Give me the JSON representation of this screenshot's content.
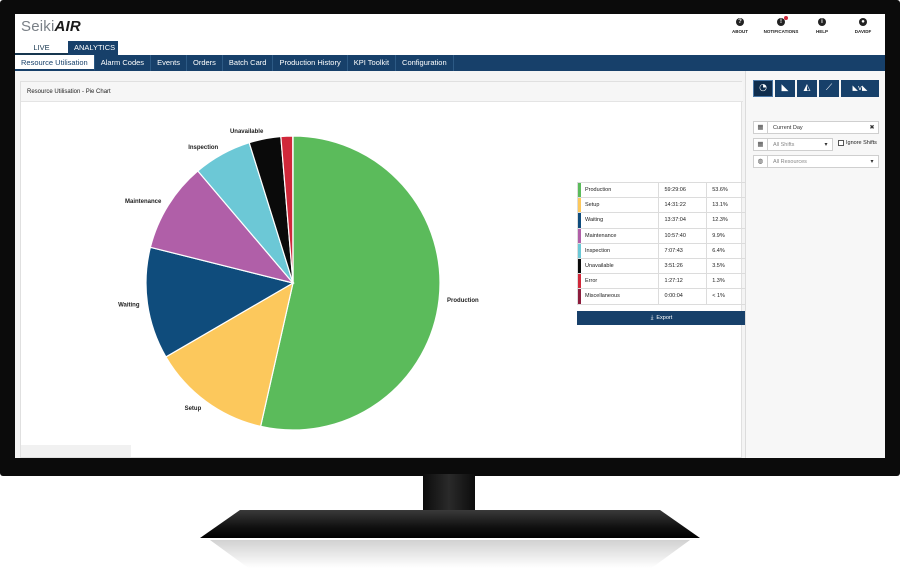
{
  "app": {
    "logo_prefix": "Seiki",
    "logo_suffix": "AIR"
  },
  "header_icons": [
    {
      "label": "ABOUT",
      "icon": "question-icon",
      "glyph": "?"
    },
    {
      "label": "NOTIFICATIONS",
      "icon": "bell-icon",
      "glyph": "!"
    },
    {
      "label": "HELP",
      "icon": "info-icon",
      "glyph": "i"
    },
    {
      "label": "DAVIDF",
      "icon": "user-icon",
      "glyph": "●"
    }
  ],
  "main_tabs": {
    "live_status": "LIVE STATUS",
    "analytics": "ANALYTICS"
  },
  "sub_tabs": [
    "Resource Utilisation",
    "Alarm Codes",
    "Events",
    "Orders",
    "Batch Card",
    "Production History",
    "KPI Toolkit",
    "Configuration"
  ],
  "panel": {
    "title": "Resource Utilisation - Pie Chart",
    "export_label": "Export"
  },
  "colors": {
    "accent": "#17406a",
    "Production": "#5bbb5b",
    "Setup": "#fcc85c",
    "Waiting": "#0f4c7c",
    "Maintenance": "#b05fa8",
    "Inspection": "#6cc8d6",
    "Unavailable": "#0a0a0a",
    "Error": "#d0283a",
    "Miscellaneous": "#8c1c3c"
  },
  "legend": [
    {
      "name": "Production",
      "time": "59:29:06",
      "percent": "53.6%"
    },
    {
      "name": "Setup",
      "time": "14:31:22",
      "percent": "13.1%"
    },
    {
      "name": "Waiting",
      "time": "13:37:04",
      "percent": "12.3%"
    },
    {
      "name": "Maintenance",
      "time": "10:57:40",
      "percent": "9.9%"
    },
    {
      "name": "Inspection",
      "time": "7:07:43",
      "percent": "6.4%"
    },
    {
      "name": "Unavailable",
      "time": "3:51:26",
      "percent": "3.5%"
    },
    {
      "name": "Error",
      "time": "1:27:12",
      "percent": "1.3%"
    },
    {
      "name": "Miscellaneous",
      "time": "0:00:04",
      "percent": "< 1%"
    }
  ],
  "chart_data": {
    "type": "pie",
    "categories": [
      "Production",
      "Setup",
      "Waiting",
      "Maintenance",
      "Inspection",
      "Unavailable",
      "Error",
      "Miscellaneous"
    ],
    "values": [
      53.6,
      13.1,
      12.3,
      9.9,
      6.4,
      3.5,
      1.3,
      0.02
    ],
    "start": "12 o'clock, clockwise",
    "slice_labels": [
      "Production",
      "Setup",
      "Waiting",
      "Maintenance",
      "Inspection",
      "Unavailable",
      "",
      ""
    ]
  },
  "sidebar": {
    "view_buttons": [
      {
        "icon": "pie-chart-icon",
        "glyph": "◔"
      },
      {
        "icon": "area-chart-icon",
        "glyph": "◣"
      },
      {
        "icon": "area-zoom-icon",
        "glyph": "◭"
      },
      {
        "icon": "line-chart-icon",
        "glyph": "⟋"
      },
      {
        "icon": "area-compare-icon",
        "glyph": "◣v◣"
      }
    ],
    "date_value": "Current Day",
    "shifts_placeholder": "All Shifts",
    "ignore_shifts_label": "Ignore Shifts",
    "resources_placeholder": "All Resources"
  }
}
